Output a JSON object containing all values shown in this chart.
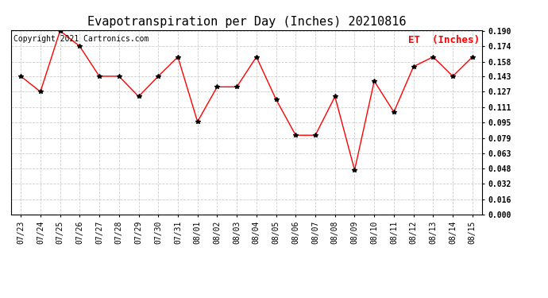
{
  "title": "Evapotranspiration per Day (Inches) 20210816",
  "copyright": "Copyright 2021 Cartronics.com",
  "legend_label": "ET  (Inches)",
  "x_labels": [
    "07/23",
    "07/24",
    "07/25",
    "07/26",
    "07/27",
    "07/28",
    "07/29",
    "07/30",
    "07/31",
    "08/01",
    "08/02",
    "08/03",
    "08/04",
    "08/05",
    "08/06",
    "08/07",
    "08/08",
    "08/09",
    "08/10",
    "08/11",
    "08/12",
    "08/13",
    "08/14",
    "08/15"
  ],
  "y_values": [
    0.143,
    0.127,
    0.19,
    0.174,
    0.143,
    0.143,
    0.122,
    0.143,
    0.163,
    0.096,
    0.132,
    0.132,
    0.163,
    0.119,
    0.082,
    0.082,
    0.122,
    0.046,
    0.138,
    0.106,
    0.153,
    0.163,
    0.143,
    0.163
  ],
  "ylim": [
    0.0,
    0.19
  ],
  "yticks": [
    0.0,
    0.016,
    0.032,
    0.048,
    0.063,
    0.079,
    0.095,
    0.111,
    0.127,
    0.143,
    0.158,
    0.174,
    0.19
  ],
  "line_color": "red",
  "marker": "*",
  "marker_color": "black",
  "marker_size": 4,
  "bg_color": "#ffffff",
  "grid_color": "#cccccc",
  "title_fontsize": 11,
  "copyright_fontsize": 7,
  "legend_color": "red",
  "legend_fontsize": 9,
  "tick_label_fontsize": 7,
  "ytick_label_fontsize": 7
}
